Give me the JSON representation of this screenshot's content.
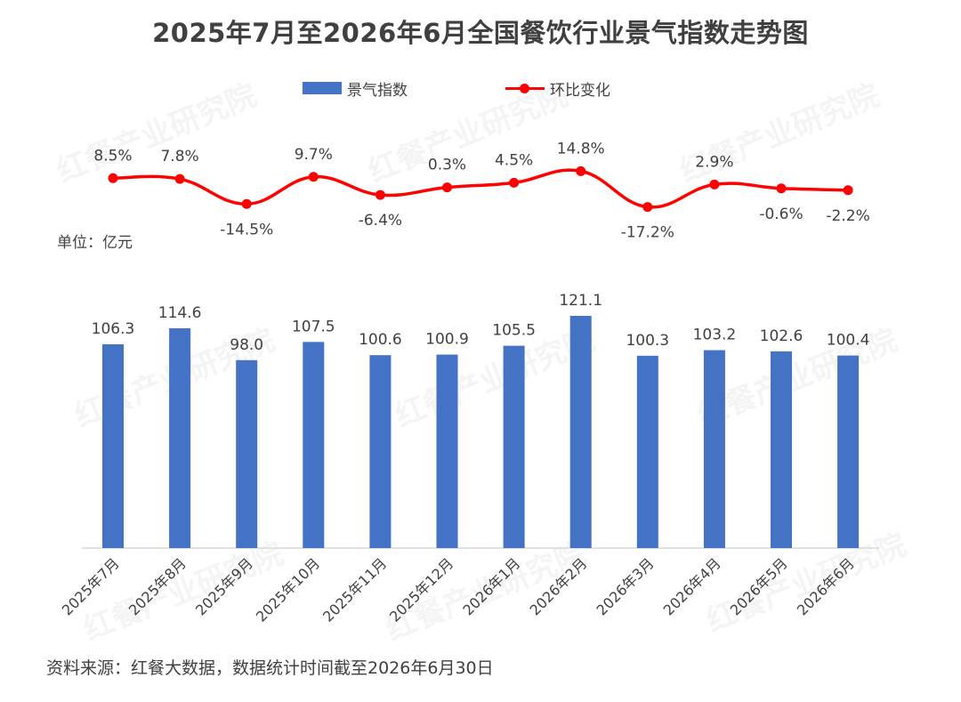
{
  "title": "2025年7月至2026年6月全国餐饮行业景气指数走势图",
  "unit_label": "单位：亿元",
  "source_note": "资料来源：红餐大数据，数据统计时间截至2026年6月30日",
  "watermark": "红餐产业研究院",
  "colors": {
    "bar": "#4472C4",
    "line": "#FF0000",
    "text": "#404040",
    "axis": "#D9D9D9"
  },
  "chart_data": {
    "type": "bar",
    "categories": [
      "2025年7月",
      "2025年8月",
      "2025年9月",
      "2025年10月",
      "2025年11月",
      "2025年12月",
      "2026年1月",
      "2026年2月",
      "2026年3月",
      "2026年4月",
      "2026年5月",
      "2026年6月"
    ],
    "series": [
      {
        "name": "景气指数",
        "type": "bar",
        "values": [
          106.3,
          114.6,
          98.0,
          107.5,
          100.6,
          100.9,
          105.5,
          121.1,
          100.3,
          103.2,
          102.6,
          100.4
        ],
        "labels": [
          "106.3",
          "114.6",
          "98.0",
          "107.5",
          "100.6",
          "100.9",
          "105.5",
          "121.1",
          "100.3",
          "103.2",
          "102.6",
          "100.4"
        ]
      },
      {
        "name": "环比变化",
        "type": "line",
        "values": [
          8.5,
          7.8,
          -14.5,
          9.7,
          -6.4,
          0.3,
          4.5,
          14.8,
          -17.2,
          2.9,
          -0.6,
          -2.2
        ],
        "labels": [
          "8.5%",
          "7.8%",
          "-14.5%",
          "9.7%",
          "-6.4%",
          "0.3%",
          "4.5%",
          "14.8%",
          "-17.2%",
          "2.9%",
          "-0.6%",
          "-2.2%"
        ],
        "label_positions": [
          "above",
          "above",
          "below",
          "above",
          "below",
          "above",
          "above",
          "above",
          "below",
          "above",
          "below",
          "below"
        ]
      }
    ],
    "bar_axis_range": [
      0,
      125
    ],
    "line_axis_range": [
      -40,
      40
    ],
    "legend_position": "top-center",
    "grid": false
  }
}
